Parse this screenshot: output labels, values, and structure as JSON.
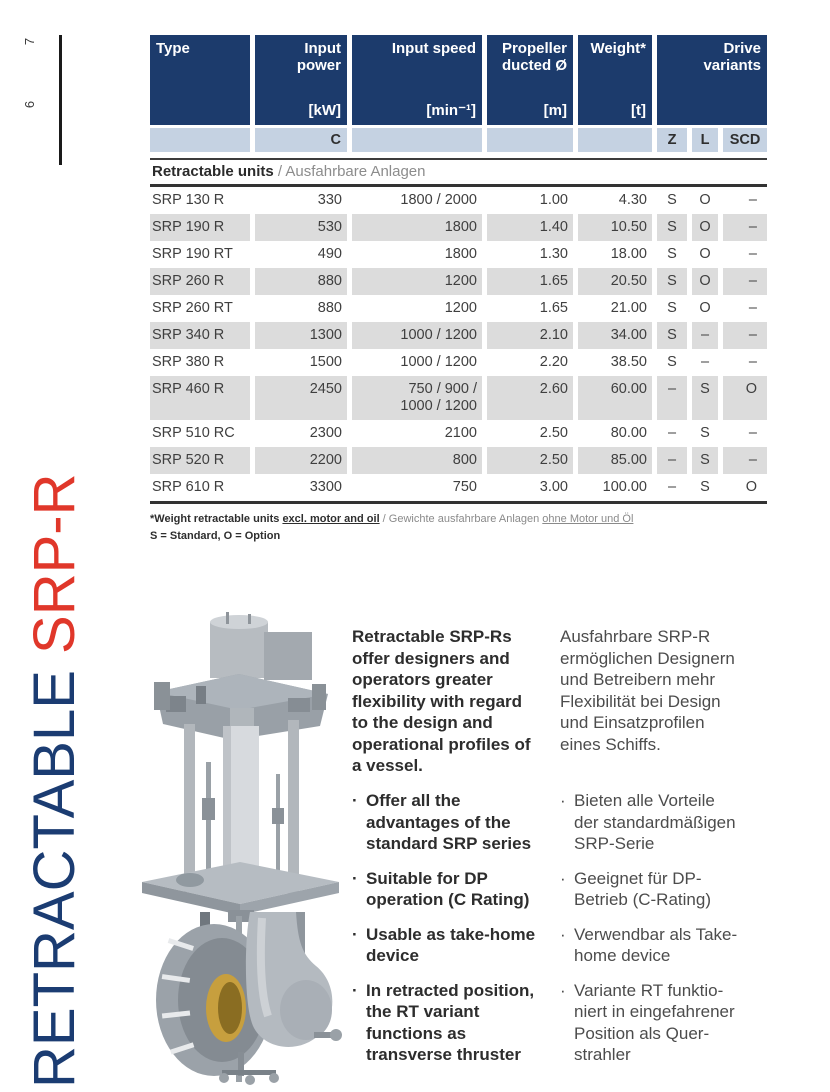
{
  "page": {
    "page_number_left": "6",
    "page_number_right": "7"
  },
  "vertical_title": {
    "word_blue": "RETRACTABLE",
    "space": " ",
    "word_red": "SRP-R"
  },
  "colors": {
    "header_navy": "#1c3b6c",
    "subheader_blue": "#c5d2e2",
    "row_gray": "#dcdcdc",
    "title_blue": "#1b3c72",
    "title_red": "#e0372a"
  },
  "table": {
    "columns": [
      {
        "label": "Type",
        "unit": ""
      },
      {
        "label": "Input power",
        "unit": "[kW]"
      },
      {
        "label": "Input speed",
        "unit": "[min⁻¹]"
      },
      {
        "label": "Propeller ducted Ø",
        "unit": "[m]"
      },
      {
        "label": "Weight*",
        "unit": "[t]"
      },
      {
        "label": "Drive variants",
        "unit": ""
      }
    ],
    "subheader": {
      "power_rating": "C",
      "drive_subcols": [
        "Z",
        "L",
        "SCD"
      ]
    },
    "section_title": {
      "en": "Retractable units",
      "sep": " / ",
      "de": "Ausfahrbare Anlagen"
    },
    "rows": [
      {
        "type": "SRP 130 R",
        "power": "330",
        "speed": "1800 / 2000",
        "prop": "1.00",
        "weight": "4.30",
        "z": "S",
        "l": "O",
        "scd": "–",
        "shaded": false
      },
      {
        "type": "SRP 190 R",
        "power": "530",
        "speed": "1800",
        "prop": "1.40",
        "weight": "10.50",
        "z": "S",
        "l": "O",
        "scd": "–",
        "shaded": true
      },
      {
        "type": "SRP 190 RT",
        "power": "490",
        "speed": "1800",
        "prop": "1.30",
        "weight": "18.00",
        "z": "S",
        "l": "O",
        "scd": "–",
        "shaded": false
      },
      {
        "type": "SRP 260 R",
        "power": "880",
        "speed": "1200",
        "prop": "1.65",
        "weight": "20.50",
        "z": "S",
        "l": "O",
        "scd": "–",
        "shaded": true
      },
      {
        "type": "SRP 260 RT",
        "power": "880",
        "speed": "1200",
        "prop": "1.65",
        "weight": "21.00",
        "z": "S",
        "l": "O",
        "scd": "–",
        "shaded": false
      },
      {
        "type": "SRP 340 R",
        "power": "1300",
        "speed": "1000 / 1200",
        "prop": "2.10",
        "weight": "34.00",
        "z": "S",
        "l": "–",
        "scd": "–",
        "shaded": true
      },
      {
        "type": "SRP 380 R",
        "power": "1500",
        "speed": "1000 / 1200",
        "prop": "2.20",
        "weight": "38.50",
        "z": "S",
        "l": "–",
        "scd": "–",
        "shaded": false
      },
      {
        "type": "SRP 460 R",
        "power": "2450",
        "speed": "750 / 900 /\n1000 / 1200",
        "prop": "2.60",
        "weight": "60.00",
        "z": "–",
        "l": "S",
        "scd": "O",
        "shaded": true
      },
      {
        "type": "SRP 510 RC",
        "power": "2300",
        "speed": "2100",
        "prop": "2.50",
        "weight": "80.00",
        "z": "–",
        "l": "S",
        "scd": "–",
        "shaded": false
      },
      {
        "type": "SRP 520 R",
        "power": "2200",
        "speed": "800",
        "prop": "2.50",
        "weight": "85.00",
        "z": "–",
        "l": "S",
        "scd": "–",
        "shaded": true
      },
      {
        "type": "SRP 610 R",
        "power": "3300",
        "speed": "750",
        "prop": "3.00",
        "weight": "100.00",
        "z": "–",
        "l": "S",
        "scd": "O",
        "shaded": false
      }
    ],
    "footnote": {
      "en_bold": "*Weight retractable units ",
      "en_underlined": "excl. motor and oil",
      "sep": " / ",
      "de_gray": "Gewichte ausfahrbare Anlagen ",
      "de_underlined": "ohne Motor und Öl",
      "legend": "S = Standard, O = Option"
    }
  },
  "content": {
    "bullet_char": "·",
    "intro_en": "Retractable SRP-Rs\noffer designers and\noperators greater\nflexibility with regard\nto the design and\noperational profiles of\na vessel.",
    "intro_de": "Ausfahrbare SRP-R\nermöglichen Designern\nund Betreibern mehr\nFlexibilität bei Design\nund Einsatzprofilen\neines Schiffs.",
    "bullets_en": [
      "Offer all the\nadvantages of the\nstandard SRP series",
      "Suitable for DP\noperation (C Rating)",
      "Usable as take-home\ndevice",
      "In retracted position,\nthe RT variant\nfunctions as\ntransverse thruster"
    ],
    "bullets_de": [
      "Bieten alle Vorteile\nder standardmäßigen\nSRP-Serie",
      "Geeignet für DP-\nBetrieb (C-Rating)",
      "Verwendbar als Take-\nhome device",
      "Variante RT funktio-\nniert in eingefahrener\nPosition als Quer-\nstrahler"
    ]
  }
}
